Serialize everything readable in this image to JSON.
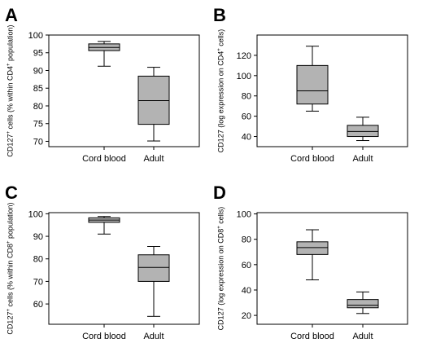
{
  "chart_data": [
    {
      "panel": "A",
      "type": "box",
      "ylabel_html": "CD127<tspan baseline-shift=\"super\" font-size=\"6\">+</tspan> cells (% within CD4<tspan baseline-shift=\"super\" font-size=\"6\">+</tspan> population)",
      "ylim": [
        68.5,
        100
      ],
      "yticks": [
        70,
        75,
        80,
        85,
        90,
        95,
        100
      ],
      "categories": [
        "Cord blood",
        "Adult"
      ],
      "boxes": [
        {
          "category": "Cord blood",
          "min": 91.2,
          "q1": 95.6,
          "median": 96.5,
          "q3": 97.5,
          "max": 98.2
        },
        {
          "category": "Adult",
          "min": 70.1,
          "q1": 74.8,
          "median": 81.5,
          "q3": 88.4,
          "max": 90.9
        }
      ]
    },
    {
      "panel": "B",
      "type": "box",
      "ylabel_html": "CD127 (log expression on CD4<tspan baseline-shift=\"super\" font-size=\"6\">+</tspan> cells)",
      "ylim": [
        30,
        140
      ],
      "yticks": [
        40,
        60,
        80,
        100,
        120
      ],
      "categories": [
        "Cord blood",
        "Adult"
      ],
      "boxes": [
        {
          "category": "Cord blood",
          "min": 65,
          "q1": 72,
          "median": 85,
          "q3": 110,
          "max": 129
        },
        {
          "category": "Adult",
          "min": 36,
          "q1": 40,
          "median": 45,
          "q3": 51,
          "max": 59
        }
      ]
    },
    {
      "panel": "C",
      "type": "box",
      "ylabel_html": "CD127<tspan baseline-shift=\"super\" font-size=\"6\">+</tspan> cells (% within CD8<tspan baseline-shift=\"super\" font-size=\"6\">+</tspan> population)",
      "ylim": [
        51,
        100.5
      ],
      "yticks": [
        60,
        70,
        80,
        90,
        100
      ],
      "categories": [
        "Cord blood",
        "Adult"
      ],
      "boxes": [
        {
          "category": "Cord blood",
          "min": 91,
          "q1": 96.2,
          "median": 97.2,
          "q3": 98.2,
          "max": 98.8
        },
        {
          "category": "Adult",
          "min": 54.5,
          "q1": 70,
          "median": 76.2,
          "q3": 81.8,
          "max": 85.5
        }
      ]
    },
    {
      "panel": "D",
      "type": "box",
      "ylabel_html": "CD127 (log expression on CD8<tspan baseline-shift=\"super\" font-size=\"6\">+</tspan> cells)",
      "ylim": [
        13,
        101
      ],
      "yticks": [
        20,
        40,
        60,
        80,
        100
      ],
      "categories": [
        "Cord blood",
        "Adult"
      ],
      "boxes": [
        {
          "category": "Cord blood",
          "min": 48,
          "q1": 68,
          "median": 73.5,
          "q3": 78,
          "max": 87.5
        },
        {
          "category": "Adult",
          "min": 21.5,
          "q1": 26,
          "median": 28,
          "q3": 32.5,
          "max": 38.5
        }
      ]
    }
  ],
  "colors": {
    "box_fill": "#b3b3b3",
    "stroke": "#000000",
    "background": "#ffffff"
  }
}
